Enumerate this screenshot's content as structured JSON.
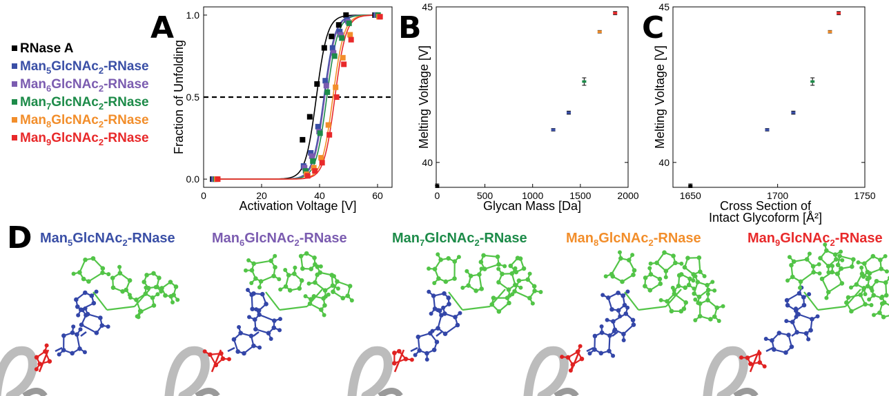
{
  "panel_letters": [
    "A",
    "B",
    "C",
    "D"
  ],
  "colors": {
    "rnase": "#000000",
    "man5": "#3a4fa6",
    "man6": "#7b5cb0",
    "man7": "#1d8b49",
    "man8": "#f28e2b",
    "man9": "#e8292a",
    "glycan_green": "#52c447",
    "core_blue": "#3346a8",
    "link_red": "#e02222",
    "ribbon_gray": "#bcbcbc"
  },
  "legend": [
    {
      "base": "RNase A",
      "parts": [],
      "color": "#000000"
    },
    {
      "parts": [
        "Man",
        "5",
        "GlcNAc",
        "2",
        "-RNase"
      ],
      "color": "#3a4fa6"
    },
    {
      "parts": [
        "Man",
        "6",
        "GlcNAc",
        "2",
        "-RNase"
      ],
      "color": "#7b5cb0"
    },
    {
      "parts": [
        "Man",
        "7",
        "GlcNAc",
        "2",
        "-RNase"
      ],
      "color": "#1d8b49"
    },
    {
      "parts": [
        "Man",
        "8",
        "GlcNAc",
        "2",
        "-RNase"
      ],
      "color": "#f28e2b"
    },
    {
      "parts": [
        "Man",
        "9",
        "GlcNAc",
        "2",
        "-RNase"
      ],
      "color": "#e8292a"
    }
  ],
  "chart_data": [
    {
      "panel": "A",
      "type": "line",
      "xlabel": "Activation Voltage [V]",
      "ylabel": "Fraction of Unfolding",
      "xlim": [
        0,
        65
      ],
      "ylim": [
        -0.05,
        1.05
      ],
      "xticks": [
        0,
        20,
        40,
        60
      ],
      "yticks": [
        0.0,
        0.5,
        1.0
      ],
      "ytick_labels": [
        "0.0",
        "0.5",
        "1.0"
      ],
      "reference_line": {
        "y": 0.5,
        "style": "dashed"
      },
      "x": [
        4,
        35,
        37.5,
        40,
        42.5,
        45,
        47.5,
        50,
        60
      ],
      "series": [
        {
          "name": "RNase A",
          "color": "#000000",
          "midpoint": 38.9,
          "values": [
            0.0,
            0.24,
            0.38,
            0.58,
            0.8,
            0.87,
            0.94,
            1.0,
            1.0
          ]
        },
        {
          "name": "Man5GlcNAc2-RNase",
          "color": "#3a4fa6",
          "midpoint": 41.5,
          "values": [
            0.0,
            0.08,
            0.16,
            0.32,
            0.6,
            0.8,
            0.9,
            0.97,
            1.0
          ]
        },
        {
          "name": "Man6GlcNAc2-RNase",
          "color": "#7b5cb0",
          "midpoint": 41.8,
          "values": [
            0.0,
            0.07,
            0.14,
            0.29,
            0.57,
            0.77,
            0.88,
            0.96,
            1.0
          ]
        },
        {
          "name": "Man7GlcNAc2-RNase",
          "color": "#1d8b49",
          "midpoint": 42.5,
          "values": [
            0.0,
            0.05,
            0.11,
            0.28,
            0.53,
            0.75,
            0.86,
            0.95,
            1.0
          ]
        },
        {
          "name": "Man8GlcNAc2-RNase",
          "color": "#f28e2b",
          "midpoint": 44.6,
          "values": [
            0.0,
            0.03,
            0.07,
            0.13,
            0.33,
            0.56,
            0.74,
            0.88,
            0.99
          ]
        },
        {
          "name": "Man9GlcNAc2-RNase",
          "color": "#e8292a",
          "midpoint": 45.3,
          "values": [
            0.0,
            0.02,
            0.05,
            0.1,
            0.27,
            0.5,
            0.7,
            0.85,
            0.99
          ]
        }
      ]
    },
    {
      "panel": "B",
      "type": "scatter",
      "xlabel": "Glycan Mass [Da]",
      "ylabel": "Melting Voltage [V]",
      "xlim": [
        -10,
        2000
      ],
      "ylim": [
        39.2,
        45
      ],
      "xticks": [
        0,
        500,
        1000,
        1500,
        2000
      ],
      "yticks": [
        40,
        45
      ],
      "x": [
        0,
        1216,
        1378,
        1540,
        1702,
        1864
      ],
      "values": [
        39.25,
        41.05,
        41.6,
        42.6,
        44.2,
        44.8
      ],
      "errors": [
        0.06,
        0.04,
        0.05,
        0.12,
        0.04,
        0.05
      ],
      "colors": [
        "#000000",
        "#3a4fa6",
        "#3a4fa6",
        "#1d8b49",
        "#f28e2b",
        "#e8292a"
      ]
    },
    {
      "panel": "C",
      "type": "scatter",
      "xlabel": "Cross Section of Intact Glycoform [Å²]",
      "xlabel_lines": [
        "Cross Section of",
        "Intact Glycoform [Å²]"
      ],
      "ylabel": "Melting Voltage [V]",
      "xlim": [
        1640,
        1750
      ],
      "ylim": [
        39.2,
        45
      ],
      "xticks": [
        1650,
        1700,
        1750
      ],
      "yticks": [
        40,
        45
      ],
      "x": [
        1650,
        1694,
        1709,
        1720,
        1730,
        1735
      ],
      "values": [
        39.25,
        41.05,
        41.6,
        42.6,
        44.2,
        44.8
      ],
      "errors": [
        0.06,
        0.04,
        0.05,
        0.12,
        0.04,
        0.05
      ],
      "colors": [
        "#000000",
        "#3a4fa6",
        "#3a4fa6",
        "#1d8b49",
        "#f28e2b",
        "#e8292a"
      ]
    }
  ],
  "structures": [
    {
      "parts": [
        "Man",
        "5",
        "GlcNAc",
        "2",
        "-RNase"
      ],
      "color": "#3a4fa6"
    },
    {
      "parts": [
        "Man",
        "6",
        "GlcNAc",
        "2",
        "-RNase"
      ],
      "color": "#7b5cb0"
    },
    {
      "parts": [
        "Man",
        "7",
        "GlcNAc",
        "2",
        "-RNase"
      ],
      "color": "#1d8b49"
    },
    {
      "parts": [
        "Man",
        "8",
        "GlcNAc",
        "2",
        "-RNase"
      ],
      "color": "#f28e2b"
    },
    {
      "parts": [
        "Man",
        "9",
        "GlcNAc",
        "2",
        "-RNase"
      ],
      "color": "#e8292a"
    }
  ]
}
